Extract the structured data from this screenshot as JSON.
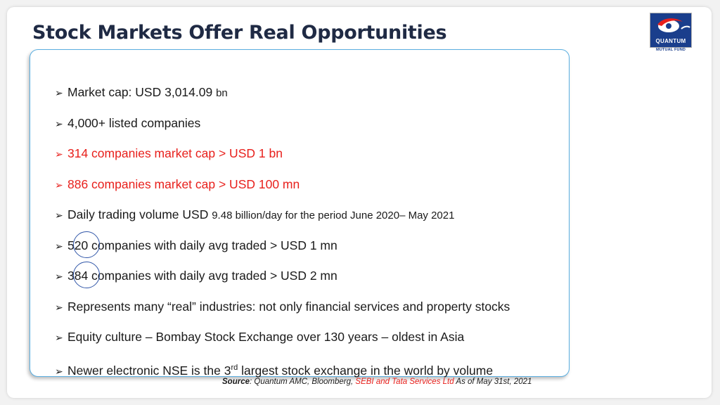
{
  "title": "Stock Markets Offer Real Opportunities",
  "logo": {
    "word": "QUANTUM",
    "sub": "MUTUAL FUND"
  },
  "bullet_arrow": "➢",
  "bullets": [
    {
      "text": "Market cap: USD 3,014.09 ",
      "tail": "bn"
    },
    {
      "text": "4,000+ listed companies"
    },
    {
      "text": "314 companies market cap > USD 1 bn",
      "color": "red"
    },
    {
      "text": "886 companies market cap  > USD 100 mn",
      "color": "red"
    },
    {
      "text": "Daily trading volume USD ",
      "tail": "9.48 billion/day for the period June 2020– May 2021"
    },
    {
      "text": "520 companies with daily avg traded > USD 1 mn"
    },
    {
      "text": "384 companies with daily avg traded > USD 2 mn"
    },
    {
      "text": "Represents many “real” industries: not only financial services and property stocks"
    },
    {
      "text": "Equity culture – Bombay Stock Exchange over 130 years – oldest in Asia"
    },
    {
      "text": "Newer electronic NSE is the 3",
      "sup": "rd",
      "tail": " largest stock exchange in the world by volume"
    }
  ],
  "source": {
    "label": "Source",
    "text": ": Quantum AMC, Bloomberg, ",
    "highlight": "SEBI and Tata Services Ltd",
    "suffix": " As of May 31st, 2021"
  },
  "colors": {
    "title": "#1f2a44",
    "red": "#e8201c",
    "border": "#5aaee0",
    "circle": "#3056a8",
    "logo": "#1a3e8c"
  }
}
